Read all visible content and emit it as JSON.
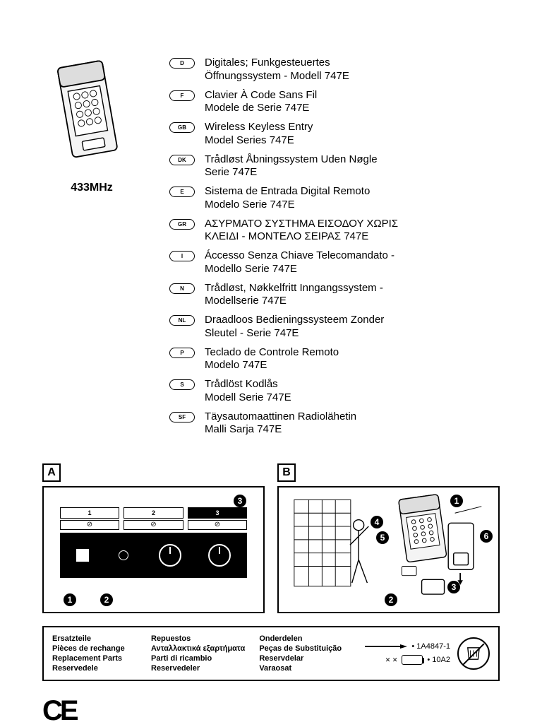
{
  "frequency": "433MHz",
  "languages": [
    {
      "code": "D",
      "l1": "Digitales; Funkgesteuertes",
      "l2": "Öffnungssystem - Modell 747E"
    },
    {
      "code": "F",
      "l1": "Clavier À Code Sans Fil",
      "l2": "Modele de Serie 747E"
    },
    {
      "code": "GB",
      "l1": "Wireless Keyless Entry",
      "l2": "Model Series 747E"
    },
    {
      "code": "DK",
      "l1": "Trådløst Åbningssystem Uden Nøgle",
      "l2": "Serie 747E"
    },
    {
      "code": "E",
      "l1": "Sistema de Entrada Digital Remoto",
      "l2": "Modelo Serie 747E"
    },
    {
      "code": "GR",
      "l1": "ΑΣΥΡΜΑΤΟ ΣΥΣΤΗΜΑ ΕΙΣΟΔΟΥ ΧΩΡΙΣ",
      "l2": "ΚΛΕΙΔΙ - ΜΟΝΤΕΛΟ ΣΕΙΡΑΣ 747E"
    },
    {
      "code": "I",
      "l1": "Áccesso Senza Chiave Telecomandato -",
      "l2": "Modello Serie 747E"
    },
    {
      "code": "N",
      "l1": "Trådløst, Nøkkelfritt Inngangssystem -",
      "l2": "Modellserie 747E"
    },
    {
      "code": "NL",
      "l1": "Draadloos Bedieningssysteem Zonder",
      "l2": "Sleutel - Serie 747E"
    },
    {
      "code": "P",
      "l1": "Teclado de Controle Remoto",
      "l2": "Modelo 747E"
    },
    {
      "code": "S",
      "l1": "Trådlöst Kodlås",
      "l2": "Modell Serie 747E"
    },
    {
      "code": "SF",
      "l1": "Täysautomaattinen Radiolähetin",
      "l2": "Malli Sarja 747E"
    }
  ],
  "figA": {
    "label": "A",
    "slots": [
      "1",
      "2",
      "3"
    ],
    "callouts": [
      "1",
      "2",
      "3"
    ]
  },
  "figB": {
    "label": "B",
    "callouts": [
      "1",
      "2",
      "3",
      "4",
      "5",
      "6"
    ]
  },
  "parts": {
    "col1": [
      "Ersatzteile",
      "Pièces de rechange",
      "Replacement Parts",
      "Reservedele"
    ],
    "col2": [
      "Repuestos",
      "Ανταλλακτικά εξαρτήματα",
      "Parti di ricambio",
      "Reservedeler"
    ],
    "col3": [
      "Onderdelen",
      "Peças de Substituição",
      "Reservdelar",
      "Varaosat"
    ],
    "item1": "• 1A4847-1",
    "item2": "• 10A2"
  },
  "ce": "CE"
}
